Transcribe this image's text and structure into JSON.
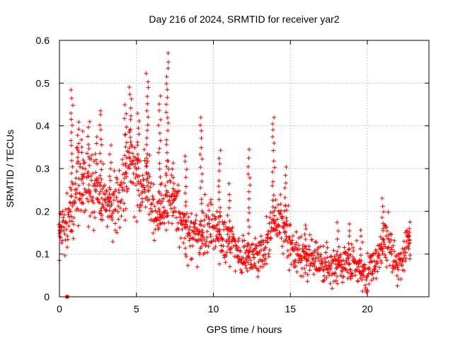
{
  "chart_data": {
    "type": "scatter",
    "title": "Day 216 of 2024, SRMTID for receiver yar2",
    "xlabel": "GPS time / hours",
    "ylabel": "SRMTID / TECUs",
    "xlim": [
      0,
      24
    ],
    "ylim": [
      0,
      0.6
    ],
    "x_ticks": [
      0,
      5,
      10,
      15,
      20
    ],
    "y_ticks": [
      0,
      0.1,
      0.2,
      0.3,
      0.4,
      0.5,
      0.6
    ],
    "grid": true,
    "marker": "plus",
    "color": "#ff0000",
    "series": [
      {
        "name": "SRMTID",
        "profile": [
          [
            0.0,
            0.15
          ],
          [
            0.5,
            0.17
          ],
          [
            0.8,
            0.22
          ],
          [
            1.2,
            0.26
          ],
          [
            1.6,
            0.27
          ],
          [
            2.0,
            0.26
          ],
          [
            2.5,
            0.24
          ],
          [
            3.0,
            0.22
          ],
          [
            3.4,
            0.22
          ],
          [
            3.8,
            0.21
          ],
          [
            4.2,
            0.26
          ],
          [
            4.6,
            0.33
          ],
          [
            5.0,
            0.27
          ],
          [
            5.5,
            0.27
          ],
          [
            5.9,
            0.24
          ],
          [
            6.3,
            0.18
          ],
          [
            6.8,
            0.22
          ],
          [
            7.2,
            0.25
          ],
          [
            7.6,
            0.21
          ],
          [
            8.0,
            0.17
          ],
          [
            8.5,
            0.14
          ],
          [
            9.0,
            0.14
          ],
          [
            9.5,
            0.16
          ],
          [
            10.0,
            0.16
          ],
          [
            10.5,
            0.14
          ],
          [
            11.0,
            0.14
          ],
          [
            11.5,
            0.12
          ],
          [
            12.0,
            0.09
          ],
          [
            12.5,
            0.1
          ],
          [
            13.0,
            0.1
          ],
          [
            13.5,
            0.12
          ],
          [
            13.8,
            0.17
          ],
          [
            14.2,
            0.19
          ],
          [
            14.6,
            0.16
          ],
          [
            15.0,
            0.12
          ],
          [
            15.5,
            0.1
          ],
          [
            16.0,
            0.09
          ],
          [
            16.5,
            0.09
          ],
          [
            17.0,
            0.08
          ],
          [
            17.5,
            0.08
          ],
          [
            18.0,
            0.07
          ],
          [
            18.5,
            0.08
          ],
          [
            19.0,
            0.08
          ],
          [
            19.5,
            0.07
          ],
          [
            19.9,
            0.04
          ],
          [
            20.3,
            0.07
          ],
          [
            20.8,
            0.09
          ],
          [
            21.2,
            0.15
          ],
          [
            21.6,
            0.09
          ],
          [
            22.0,
            0.08
          ],
          [
            22.4,
            0.1
          ],
          [
            22.8,
            0.14
          ]
        ],
        "spikes": [
          [
            0.0,
            0.17
          ],
          [
            0.8,
            0.48
          ],
          [
            1.2,
            0.41
          ],
          [
            1.5,
            0.39
          ],
          [
            1.9,
            0.41
          ],
          [
            2.4,
            0.37
          ],
          [
            2.7,
            0.44
          ],
          [
            3.3,
            0.35
          ],
          [
            4.3,
            0.45
          ],
          [
            4.6,
            0.49
          ],
          [
            5.1,
            0.43
          ],
          [
            5.7,
            0.52
          ],
          [
            6.5,
            0.47
          ],
          [
            7.0,
            0.57
          ],
          [
            7.4,
            0.31
          ],
          [
            8.2,
            0.33
          ],
          [
            9.2,
            0.42
          ],
          [
            10.4,
            0.34
          ],
          [
            11.0,
            0.26
          ],
          [
            12.3,
            0.34
          ],
          [
            13.9,
            0.42
          ],
          [
            14.7,
            0.3
          ],
          [
            16.0,
            0.17
          ],
          [
            18.1,
            0.17
          ],
          [
            18.8,
            0.17
          ],
          [
            19.6,
            0.16
          ],
          [
            21.0,
            0.23
          ],
          [
            22.7,
            0.16
          ]
        ],
        "outliers": [
          [
            0.5,
            0.0
          ]
        ]
      }
    ]
  }
}
